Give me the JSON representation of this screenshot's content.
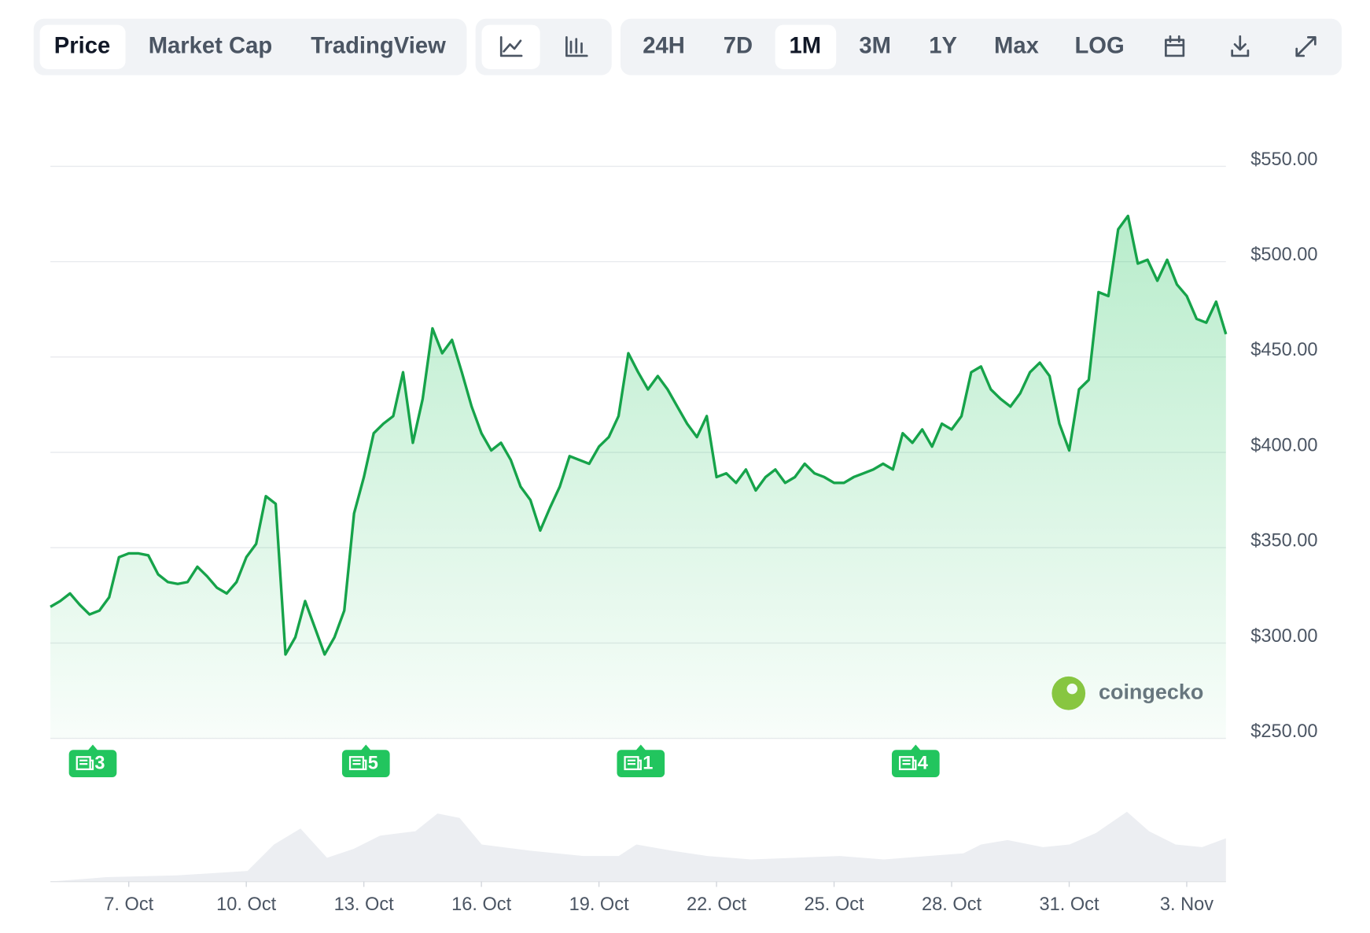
{
  "toolbar": {
    "tabs": [
      "Price",
      "Market Cap",
      "TradingView"
    ],
    "ranges": [
      "24H",
      "7D",
      "1M",
      "3M",
      "1Y",
      "Max",
      "LOG"
    ]
  },
  "watermark": "coingecko",
  "news_badges": [
    3,
    5,
    1,
    4
  ],
  "chart_data": {
    "type": "line",
    "color": "#16a34a",
    "grid": true,
    "xlim": [
      5,
      35
    ],
    "xticks": [
      {
        "value": 7,
        "label": "7. Oct"
      },
      {
        "value": 10,
        "label": "10. Oct"
      },
      {
        "value": 13,
        "label": "13. Oct"
      },
      {
        "value": 16,
        "label": "16. Oct"
      },
      {
        "value": 19,
        "label": "19. Oct"
      },
      {
        "value": 22,
        "label": "22. Oct"
      },
      {
        "value": 25,
        "label": "25. Oct"
      },
      {
        "value": 28,
        "label": "28. Oct"
      },
      {
        "value": 31,
        "label": "31. Oct"
      },
      {
        "value": 34,
        "label": "3. Nov"
      }
    ],
    "ylim": [
      250,
      550
    ],
    "yticks": [
      {
        "value": 250,
        "label": "$250.00"
      },
      {
        "value": 300,
        "label": "$300.00"
      },
      {
        "value": 350,
        "label": "$350.00"
      },
      {
        "value": 400,
        "label": "$400.00"
      },
      {
        "value": 450,
        "label": "$450.00"
      },
      {
        "value": 500,
        "label": "$500.00"
      },
      {
        "value": 550,
        "label": "$550.00"
      }
    ],
    "x": [
      5,
      5.25,
      5.5,
      5.75,
      6,
      6.25,
      6.5,
      6.75,
      7,
      7.25,
      7.5,
      7.75,
      8,
      8.25,
      8.5,
      8.75,
      9,
      9.25,
      9.5,
      9.75,
      10,
      10.25,
      10.5,
      10.75,
      11,
      11.25,
      11.5,
      11.75,
      12,
      12.25,
      12.5,
      12.75,
      13,
      13.25,
      13.5,
      13.75,
      14,
      14.25,
      14.5,
      14.75,
      15,
      15.25,
      15.5,
      15.75,
      16,
      16.25,
      16.5,
      16.75,
      17,
      17.25,
      17.5,
      17.75,
      18,
      18.25,
      18.5,
      18.75,
      19,
      19.25,
      19.5,
      19.75,
      20,
      20.25,
      20.5,
      20.75,
      21,
      21.25,
      21.5,
      21.75,
      22,
      22.25,
      22.5,
      22.75,
      23,
      23.25,
      23.5,
      23.75,
      24,
      24.25,
      24.5,
      24.75,
      25,
      25.25,
      25.5,
      25.75,
      26,
      26.25,
      26.5,
      26.75,
      27,
      27.25,
      27.5,
      27.75,
      28,
      28.25,
      28.5,
      28.75,
      29,
      29.25,
      29.5,
      29.75,
      30,
      30.25,
      30.5,
      30.75,
      31,
      31.25,
      31.5,
      31.75,
      32,
      32.25,
      32.5,
      32.75,
      33,
      33.25,
      33.5,
      33.75,
      34,
      34.25,
      34.5,
      34.75,
      35
    ],
    "values": [
      319,
      322,
      326,
      320,
      315,
      317,
      324,
      345,
      347,
      347,
      346,
      336,
      332,
      331,
      332,
      340,
      335,
      329,
      326,
      332,
      345,
      352,
      377,
      373,
      294,
      303,
      322,
      308,
      294,
      303,
      317,
      368,
      387,
      410,
      415,
      419,
      442,
      405,
      428,
      465,
      452,
      459,
      442,
      424,
      410,
      401,
      405,
      396,
      382,
      375,
      359,
      371,
      382,
      398,
      396,
      394,
      403,
      408,
      419,
      452,
      442,
      433,
      440,
      433,
      424,
      415,
      408,
      419,
      387,
      389,
      384,
      391,
      380,
      387,
      391,
      384,
      387,
      394,
      389,
      387,
      384,
      384,
      387,
      389,
      391,
      394,
      391,
      410,
      405,
      412,
      403,
      415,
      412,
      419,
      442,
      445,
      433,
      428,
      424,
      431,
      442,
      447,
      440,
      415,
      401,
      433,
      438,
      484,
      482,
      517,
      524,
      499,
      501,
      490,
      501,
      488,
      482,
      470,
      468,
      479,
      462
    ]
  }
}
